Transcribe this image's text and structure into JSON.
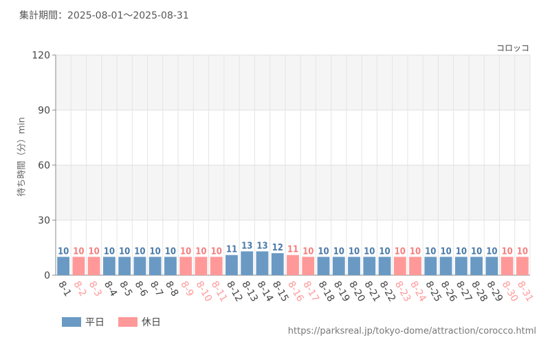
{
  "header": {
    "period": "集計期間：2025-08-01～2025-08-31",
    "attraction": "コロッコ"
  },
  "legend": {
    "weekday": "平日",
    "holiday": "休日"
  },
  "footer": {
    "source": "https://parksreal.jp/tokyo-dome/attraction/corocco.html"
  },
  "chart_data": {
    "type": "bar",
    "title": "",
    "xlabel": "",
    "ylabel": "待ち時間（分）min",
    "ylim": [
      0,
      120
    ],
    "yticks": [
      0,
      30,
      60,
      90,
      120
    ],
    "grid": true,
    "legend_position": "bottom-left",
    "colors": {
      "weekday": "#6a9ac4",
      "holiday": "#ff9999",
      "weekday_label": "#4a7aa8",
      "holiday_label": "#f47f7f"
    },
    "categories": [
      "8-1",
      "8-2",
      "8-3",
      "8-4",
      "8-5",
      "8-6",
      "8-7",
      "8-8",
      "8-9",
      "8-10",
      "8-11",
      "8-12",
      "8-13",
      "8-14",
      "8-15",
      "8-16",
      "8-17",
      "8-18",
      "8-19",
      "8-20",
      "8-21",
      "8-22",
      "8-23",
      "8-24",
      "8-25",
      "8-26",
      "8-27",
      "8-28",
      "8-29",
      "8-30",
      "8-31"
    ],
    "values": [
      10,
      10,
      10,
      10,
      10,
      10,
      10,
      10,
      10,
      10,
      10,
      11,
      13,
      13,
      12,
      11,
      10,
      10,
      10,
      10,
      10,
      10,
      10,
      10,
      10,
      10,
      10,
      10,
      10,
      10,
      10
    ],
    "day_type": [
      "weekday",
      "holiday",
      "holiday",
      "weekday",
      "weekday",
      "weekday",
      "weekday",
      "weekday",
      "holiday",
      "holiday",
      "holiday",
      "weekday",
      "weekday",
      "weekday",
      "weekday",
      "holiday",
      "holiday",
      "weekday",
      "weekday",
      "weekday",
      "weekday",
      "weekday",
      "holiday",
      "holiday",
      "weekday",
      "weekday",
      "weekday",
      "weekday",
      "weekday",
      "holiday",
      "holiday"
    ]
  }
}
